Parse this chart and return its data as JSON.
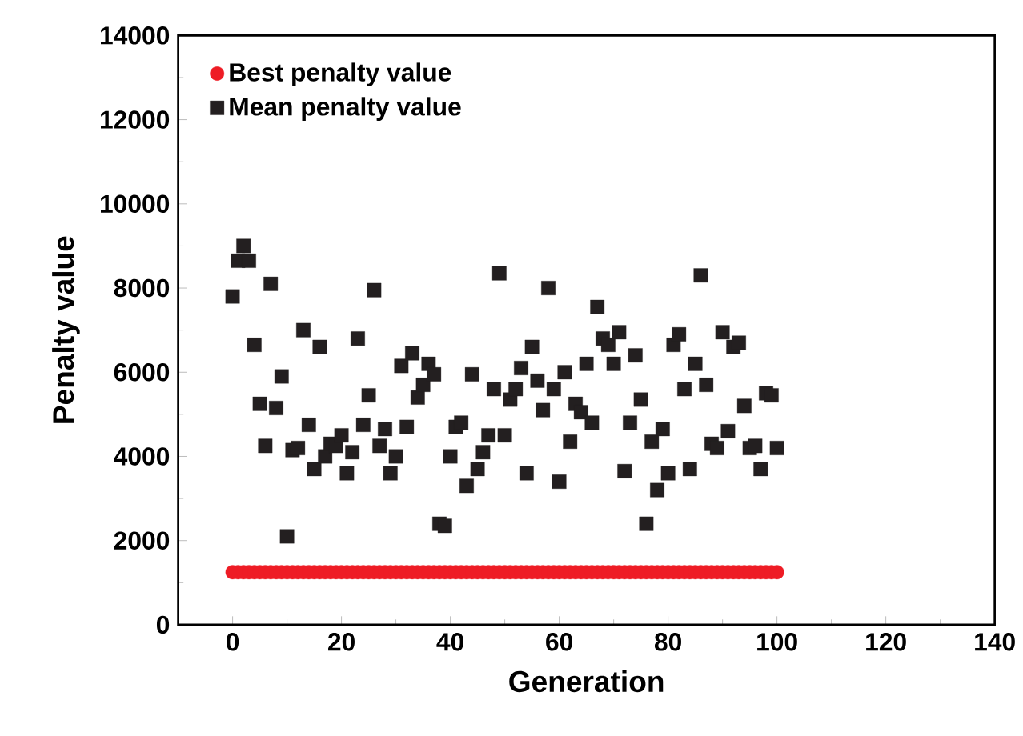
{
  "chart_data": {
    "type": "scatter",
    "xlabel": "Generation",
    "ylabel": "Penalty value",
    "xlim": [
      -10,
      140
    ],
    "xticks": [
      0,
      20,
      40,
      60,
      80,
      100,
      120,
      140
    ],
    "ylim": [
      0,
      14000
    ],
    "yticks": [
      0,
      2000,
      4000,
      6000,
      8000,
      10000,
      12000,
      14000
    ],
    "legend": "top left",
    "grid": false,
    "x": [
      0,
      1,
      2,
      3,
      4,
      5,
      6,
      7,
      8,
      9,
      10,
      11,
      12,
      13,
      14,
      15,
      16,
      17,
      18,
      19,
      20,
      21,
      22,
      23,
      24,
      25,
      26,
      27,
      28,
      29,
      30,
      31,
      32,
      33,
      34,
      35,
      36,
      37,
      38,
      39,
      40,
      41,
      42,
      43,
      44,
      45,
      46,
      47,
      48,
      49,
      50,
      51,
      52,
      53,
      54,
      55,
      56,
      57,
      58,
      59,
      60,
      61,
      62,
      63,
      64,
      65,
      66,
      67,
      68,
      69,
      70,
      71,
      72,
      73,
      74,
      75,
      76,
      77,
      78,
      79,
      80,
      81,
      82,
      83,
      84,
      85,
      86,
      87,
      88,
      89,
      90,
      91,
      92,
      93,
      94,
      95,
      96,
      97,
      98,
      99,
      100
    ],
    "series": [
      {
        "name": "Best penalty value",
        "color": "#ee1c25",
        "marker": "circle",
        "values": [
          1250,
          1250,
          1250,
          1250,
          1250,
          1250,
          1250,
          1250,
          1250,
          1250,
          1250,
          1250,
          1250,
          1250,
          1250,
          1250,
          1250,
          1250,
          1250,
          1250,
          1250,
          1250,
          1250,
          1250,
          1250,
          1250,
          1250,
          1250,
          1250,
          1250,
          1250,
          1250,
          1250,
          1250,
          1250,
          1250,
          1250,
          1250,
          1250,
          1250,
          1250,
          1250,
          1250,
          1250,
          1250,
          1250,
          1250,
          1250,
          1250,
          1250,
          1250,
          1250,
          1250,
          1250,
          1250,
          1250,
          1250,
          1250,
          1250,
          1250,
          1250,
          1250,
          1250,
          1250,
          1250,
          1250,
          1250,
          1250,
          1250,
          1250,
          1250,
          1250,
          1250,
          1250,
          1250,
          1250,
          1250,
          1250,
          1250,
          1250,
          1250,
          1250,
          1250,
          1250,
          1250,
          1250,
          1250,
          1250,
          1250,
          1250,
          1250,
          1250,
          1250,
          1250,
          1250,
          1250,
          1250,
          1250,
          1250,
          1250,
          1250
        ]
      },
      {
        "name": "Mean penalty value",
        "color": "#231f20",
        "marker": "square",
        "values": [
          7800,
          8650,
          9000,
          8650,
          6650,
          5250,
          4250,
          8100,
          5150,
          5900,
          2100,
          4150,
          4200,
          7000,
          4750,
          3700,
          6600,
          4000,
          4300,
          4250,
          4500,
          3600,
          4100,
          6800,
          4750,
          5450,
          7950,
          4250,
          4650,
          3600,
          4000,
          6150,
          4700,
          6450,
          5400,
          5700,
          6200,
          5950,
          2400,
          2350,
          4000,
          4700,
          4800,
          3300,
          5950,
          3700,
          4100,
          4500,
          5600,
          8350,
          4500,
          5350,
          5600,
          6100,
          3600,
          6600,
          5800,
          5100,
          8000,
          5600,
          3400,
          6000,
          4350,
          5250,
          5050,
          6200,
          4800,
          7550,
          6800,
          6650,
          6200,
          6950,
          3650,
          4800,
          6400,
          5350,
          2400,
          4350,
          3200,
          4650,
          3600,
          6650,
          6900,
          5600,
          3700,
          6200,
          8300,
          5700,
          4300,
          4200,
          6950,
          4600,
          6600,
          6700,
          5200,
          4200,
          4250,
          3700,
          5500,
          5450,
          4200
        ]
      }
    ]
  }
}
